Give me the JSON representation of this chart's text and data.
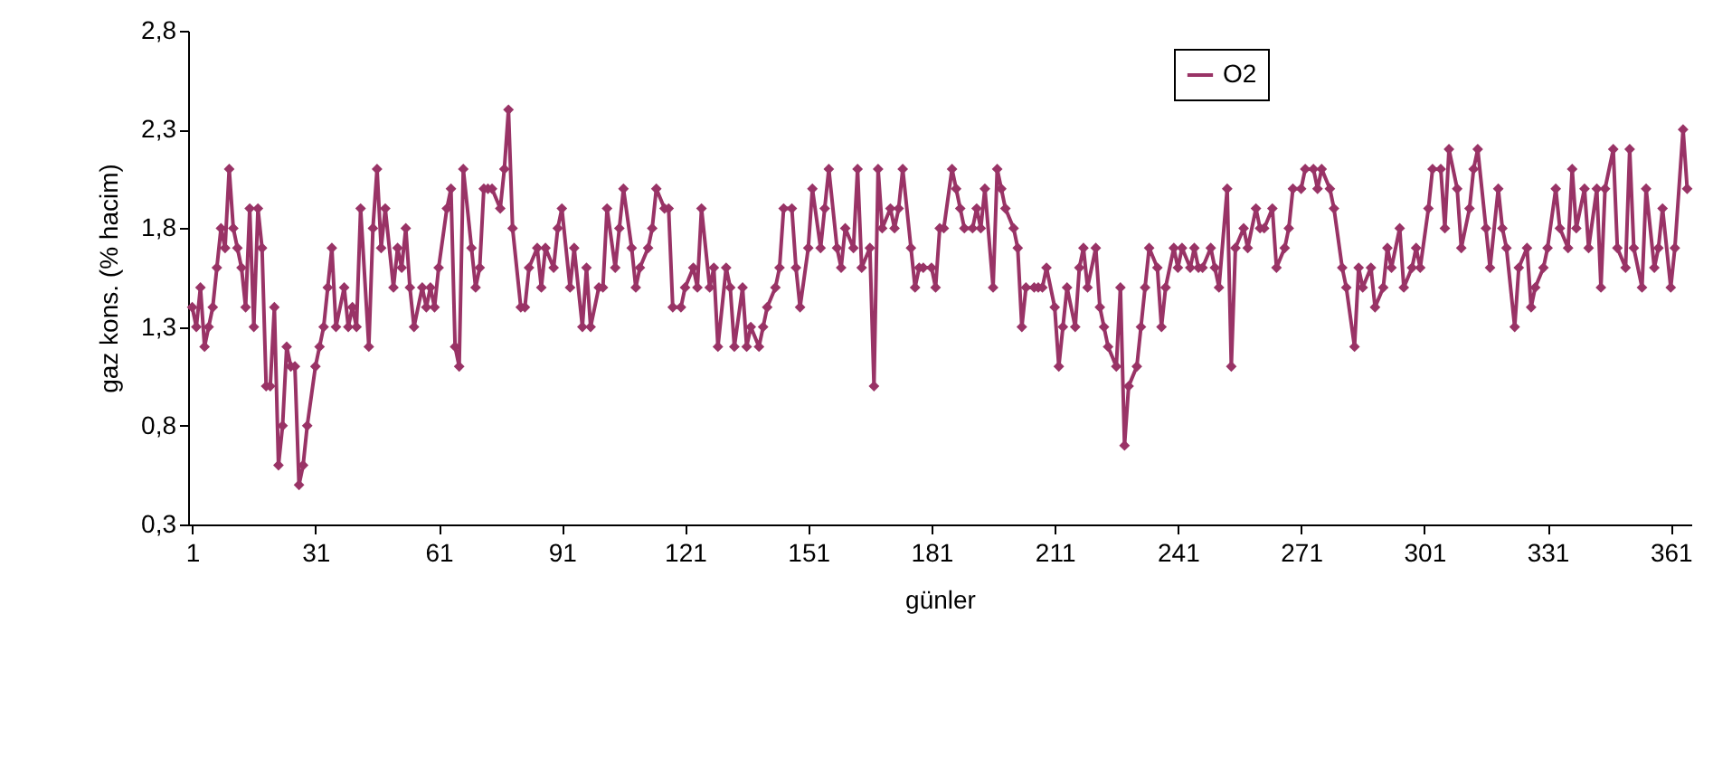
{
  "chart_data": {
    "type": "line",
    "xlabel": "günler",
    "ylabel": "gaz kons. (% hacim)",
    "xlim": [
      0,
      366
    ],
    "xticks": [
      1,
      31,
      61,
      91,
      121,
      151,
      181,
      211,
      241,
      271,
      301,
      331,
      361
    ],
    "ylim": [
      0.3,
      2.8
    ],
    "yticks": [
      {
        "value": 0.3,
        "label": "0,3"
      },
      {
        "value": 0.8,
        "label": "0,8"
      },
      {
        "value": 1.3,
        "label": "1,3"
      },
      {
        "value": 1.8,
        "label": "1,8"
      },
      {
        "value": 2.3,
        "label": "2,3"
      },
      {
        "value": 2.8,
        "label": "2,8"
      }
    ],
    "grid": false,
    "legend": "top right",
    "marker": "diamond",
    "line_style": "solid",
    "series": [
      {
        "name": "O2",
        "color": "#993366",
        "x": [
          1,
          2,
          3,
          4,
          5,
          6,
          7,
          8,
          9,
          10,
          11,
          12,
          13,
          14,
          15,
          16,
          17,
          18,
          19,
          20,
          21,
          22,
          23,
          24,
          25,
          26,
          27,
          28,
          29,
          31,
          32,
          33,
          34,
          35,
          36,
          38,
          39,
          40,
          41,
          42,
          44,
          45,
          46,
          47,
          48,
          50,
          51,
          52,
          53,
          54,
          55,
          57,
          58,
          59,
          60,
          61,
          63,
          64,
          65,
          66,
          67,
          69,
          70,
          71,
          72,
          73,
          74,
          76,
          77,
          78,
          79,
          81,
          82,
          83,
          85,
          86,
          87,
          89,
          90,
          91,
          93,
          94,
          96,
          97,
          98,
          100,
          101,
          102,
          104,
          105,
          106,
          108,
          109,
          110,
          112,
          113,
          114,
          116,
          117,
          118,
          120,
          121,
          123,
          124,
          125,
          127,
          128,
          129,
          131,
          132,
          133,
          135,
          136,
          137,
          139,
          140,
          141,
          143,
          144,
          145,
          147,
          148,
          149,
          151,
          152,
          154,
          155,
          156,
          158,
          159,
          160,
          162,
          163,
          164,
          166,
          167,
          168,
          169,
          171,
          172,
          173,
          174,
          176,
          177,
          178,
          179,
          181,
          182,
          183,
          184,
          186,
          187,
          188,
          189,
          191,
          192,
          193,
          194,
          196,
          197,
          198,
          199,
          201,
          202,
          203,
          204,
          206,
          207,
          208,
          209,
          211,
          212,
          213,
          214,
          216,
          217,
          218,
          219,
          221,
          222,
          223,
          224,
          226,
          227,
          228,
          229,
          231,
          232,
          233,
          234,
          236,
          237,
          238,
          240,
          241,
          242,
          244,
          245,
          246,
          247,
          249,
          250,
          251,
          253,
          254,
          255,
          257,
          258,
          260,
          261,
          262,
          264,
          265,
          267,
          268,
          269,
          271,
          272,
          274,
          275,
          276,
          278,
          279,
          281,
          282,
          284,
          285,
          286,
          288,
          289,
          291,
          292,
          293,
          295,
          296,
          298,
          299,
          300,
          302,
          303,
          305,
          306,
          307,
          309,
          310,
          312,
          313,
          314,
          316,
          317,
          319,
          320,
          321,
          323,
          324,
          326,
          327,
          328,
          330,
          331,
          333,
          334,
          336,
          337,
          338,
          340,
          341,
          343,
          344,
          345,
          347,
          348,
          350,
          351,
          352,
          354,
          355,
          357,
          358,
          359,
          361,
          362,
          364,
          365
        ],
        "values": [
          1.4,
          1.3,
          1.5,
          1.2,
          1.3,
          1.4,
          1.6,
          1.8,
          1.7,
          2.1,
          1.8,
          1.7,
          1.6,
          1.4,
          1.9,
          1.3,
          1.9,
          1.7,
          1.0,
          1.0,
          1.4,
          0.6,
          0.8,
          1.2,
          1.1,
          1.1,
          0.5,
          0.6,
          0.8,
          1.1,
          1.2,
          1.3,
          1.5,
          1.7,
          1.3,
          1.5,
          1.3,
          1.4,
          1.3,
          1.9,
          1.2,
          1.8,
          2.1,
          1.7,
          1.9,
          1.5,
          1.7,
          1.6,
          1.8,
          1.5,
          1.3,
          1.5,
          1.4,
          1.5,
          1.4,
          1.6,
          1.9,
          2.0,
          1.2,
          1.1,
          2.1,
          1.7,
          1.5,
          1.6,
          2.0,
          2.0,
          2.0,
          1.9,
          2.1,
          2.4,
          1.8,
          1.4,
          1.4,
          1.6,
          1.7,
          1.5,
          1.7,
          1.6,
          1.8,
          1.9,
          1.5,
          1.7,
          1.3,
          1.6,
          1.3,
          1.5,
          1.5,
          1.9,
          1.6,
          1.8,
          2.0,
          1.7,
          1.5,
          1.6,
          1.7,
          1.8,
          2.0,
          1.9,
          1.9,
          1.4,
          1.4,
          1.5,
          1.6,
          1.5,
          1.9,
          1.5,
          1.6,
          1.2,
          1.6,
          1.5,
          1.2,
          1.5,
          1.2,
          1.3,
          1.2,
          1.3,
          1.4,
          1.5,
          1.6,
          1.9,
          1.9,
          1.6,
          1.4,
          1.7,
          2.0,
          1.7,
          1.9,
          2.1,
          1.7,
          1.6,
          1.8,
          1.7,
          2.1,
          1.6,
          1.7,
          1.0,
          2.1,
          1.8,
          1.9,
          1.8,
          1.9,
          2.1,
          1.7,
          1.5,
          1.6,
          1.6,
          1.6,
          1.5,
          1.8,
          1.8,
          2.1,
          2.0,
          1.9,
          1.8,
          1.8,
          1.9,
          1.8,
          2.0,
          1.5,
          2.1,
          2.0,
          1.9,
          1.8,
          1.7,
          1.3,
          1.5,
          1.5,
          1.5,
          1.5,
          1.6,
          1.4,
          1.1,
          1.3,
          1.5,
          1.3,
          1.6,
          1.7,
          1.5,
          1.7,
          1.4,
          1.3,
          1.2,
          1.1,
          1.5,
          0.7,
          1.0,
          1.1,
          1.3,
          1.5,
          1.7,
          1.6,
          1.3,
          1.5,
          1.7,
          1.6,
          1.7,
          1.6,
          1.7,
          1.6,
          1.6,
          1.7,
          1.6,
          1.5,
          2.0,
          1.1,
          1.7,
          1.8,
          1.7,
          1.9,
          1.8,
          1.8,
          1.9,
          1.6,
          1.7,
          1.8,
          2.0,
          2.0,
          2.1,
          2.1,
          2.0,
          2.1,
          2.0,
          1.9,
          1.6,
          1.5,
          1.2,
          1.6,
          1.5,
          1.6,
          1.4,
          1.5,
          1.7,
          1.6,
          1.8,
          1.5,
          1.6,
          1.7,
          1.6,
          1.9,
          2.1,
          2.1,
          1.8,
          2.2,
          2.0,
          1.7,
          1.9,
          2.1,
          2.2,
          1.8,
          1.6,
          2.0,
          1.8,
          1.7,
          1.3,
          1.6,
          1.7,
          1.4,
          1.5,
          1.6,
          1.7,
          2.0,
          1.8,
          1.7,
          2.1,
          1.8,
          2.0,
          1.7,
          2.0,
          1.5,
          2.0,
          2.2,
          1.7,
          1.6,
          2.2,
          1.7,
          1.5,
          2.0,
          1.6,
          1.7,
          1.9,
          1.5,
          1.7,
          2.3,
          2.0
        ]
      }
    ]
  }
}
